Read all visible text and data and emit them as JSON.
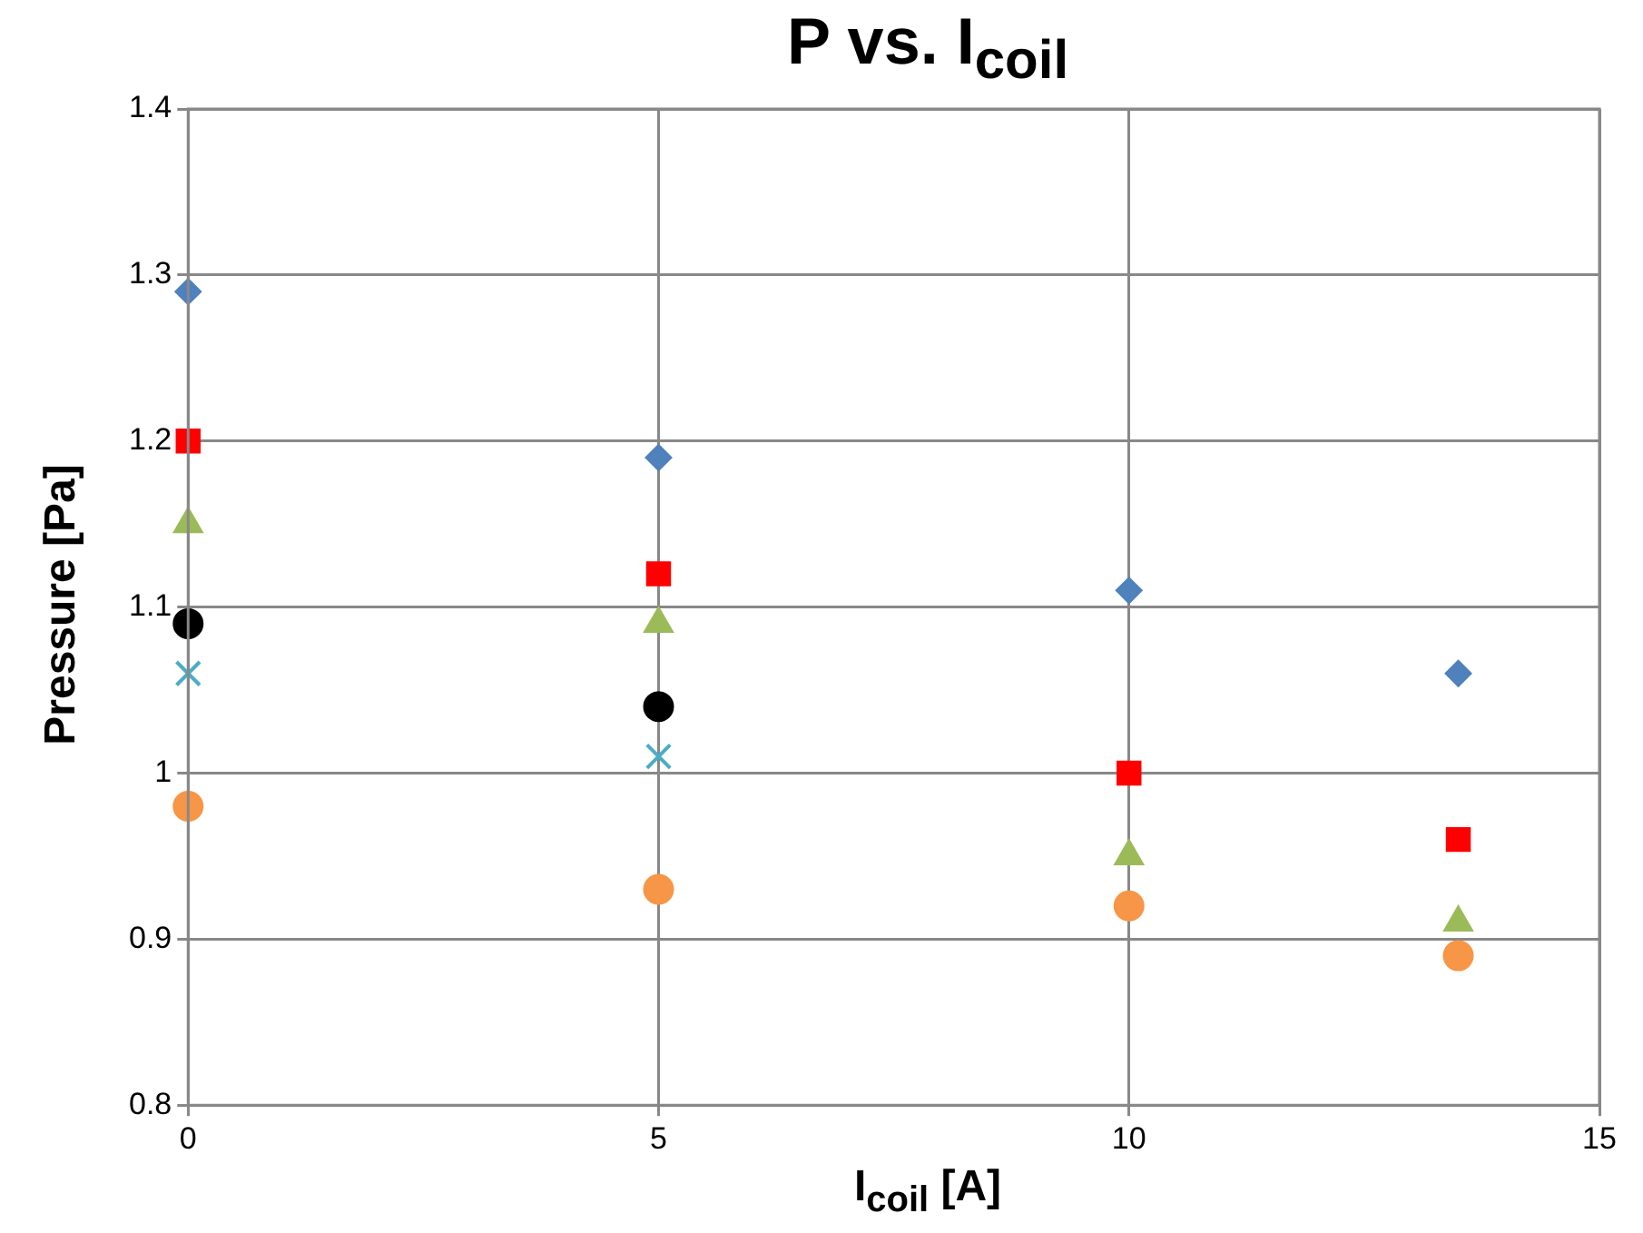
{
  "chart_data": {
    "type": "scatter",
    "title": "P vs. I$_{coil}$",
    "xlabel": "I$_{coil}$ [A]",
    "ylabel": "Pressure [Pa]",
    "xlim": [
      0,
      15
    ],
    "xticks": [
      0,
      5,
      10,
      15
    ],
    "ylim": [
      0.8,
      1.4
    ],
    "yticks": [
      0.8,
      0.9,
      1,
      1.1,
      1.2,
      1.3,
      1.4
    ],
    "grid": true,
    "legend": false,
    "series": [
      {
        "color": "#4f81bd",
        "marker": "diamond",
        "x": [
          0,
          5,
          10,
          13.5
        ],
        "values": [
          1.29,
          1.19,
          1.11,
          1.06
        ]
      },
      {
        "color": "#ff0000",
        "marker": "square",
        "x": [
          0,
          5,
          10,
          13.5
        ],
        "values": [
          1.2,
          1.12,
          1.0,
          0.96
        ]
      },
      {
        "color": "#9bbb59",
        "marker": "triangle",
        "x": [
          0,
          5,
          10,
          13.5
        ],
        "values": [
          1.15,
          1.09,
          0.95,
          0.91
        ]
      },
      {
        "color": "#000000",
        "marker": "circle",
        "x": [
          0,
          5
        ],
        "values": [
          1.09,
          1.04
        ]
      },
      {
        "color": "#4bacc6",
        "marker": "cross",
        "x": [
          0,
          5
        ],
        "values": [
          1.06,
          1.01
        ]
      },
      {
        "color": "#f79646",
        "marker": "circle",
        "x": [
          0,
          5,
          10,
          13.5
        ],
        "values": [
          0.98,
          0.93,
          0.92,
          0.89
        ]
      }
    ]
  }
}
